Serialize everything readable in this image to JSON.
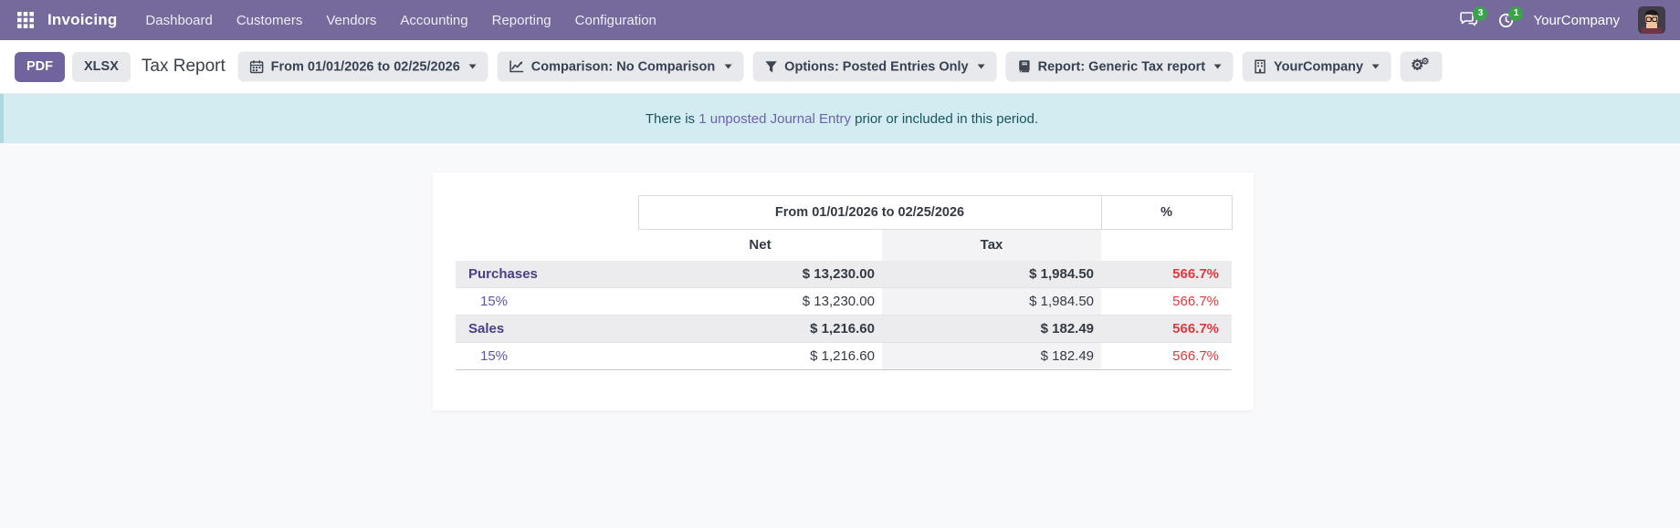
{
  "navbar": {
    "app_name": "Invoicing",
    "menu_items": [
      "Dashboard",
      "Customers",
      "Vendors",
      "Accounting",
      "Reporting",
      "Configuration"
    ],
    "messages_badge": "3",
    "activities_badge": "1",
    "company_name": "YourCompany"
  },
  "control_bar": {
    "pdf_label": "PDF",
    "xlsx_label": "XLSX",
    "title": "Tax Report",
    "filters": {
      "date_range": "From 01/01/2026 to 02/25/2026",
      "comparison": "Comparison: No Comparison",
      "options": "Options: Posted Entries Only",
      "report": "Report: Generic Tax report",
      "company": "YourCompany"
    }
  },
  "banner": {
    "text_before": "There is",
    "link_text": "1 unposted Journal Entry",
    "text_after": "prior or included in this period."
  },
  "report_table": {
    "period_header": "From 01/01/2026 to 02/25/2026",
    "percent_header": "%",
    "net_header": "Net",
    "tax_header": "Tax",
    "rows": [
      {
        "type": "group",
        "name": "Purchases",
        "net": "$ 13,230.00",
        "tax": "$ 1,984.50",
        "pct": "566.7%"
      },
      {
        "type": "line",
        "name": "15%",
        "net": "$ 13,230.00",
        "tax": "$ 1,984.50",
        "pct": "566.7%"
      },
      {
        "type": "group",
        "name": "Sales",
        "net": "$ 1,216.60",
        "tax": "$ 182.49",
        "pct": "566.7%"
      },
      {
        "type": "line",
        "name": "15%",
        "net": "$ 1,216.60",
        "tax": "$ 182.49",
        "pct": "566.7%"
      }
    ]
  },
  "colors": {
    "navbar_bg": "#756a9b",
    "primary_button": "#71639e",
    "badge_green": "#3aa34b",
    "banner_bg": "#d3ecf1",
    "banner_text": "#19545f",
    "link_purple": "#6e61ad",
    "negative_red": "#dc3a3e",
    "group_row_bg": "#ececee"
  }
}
